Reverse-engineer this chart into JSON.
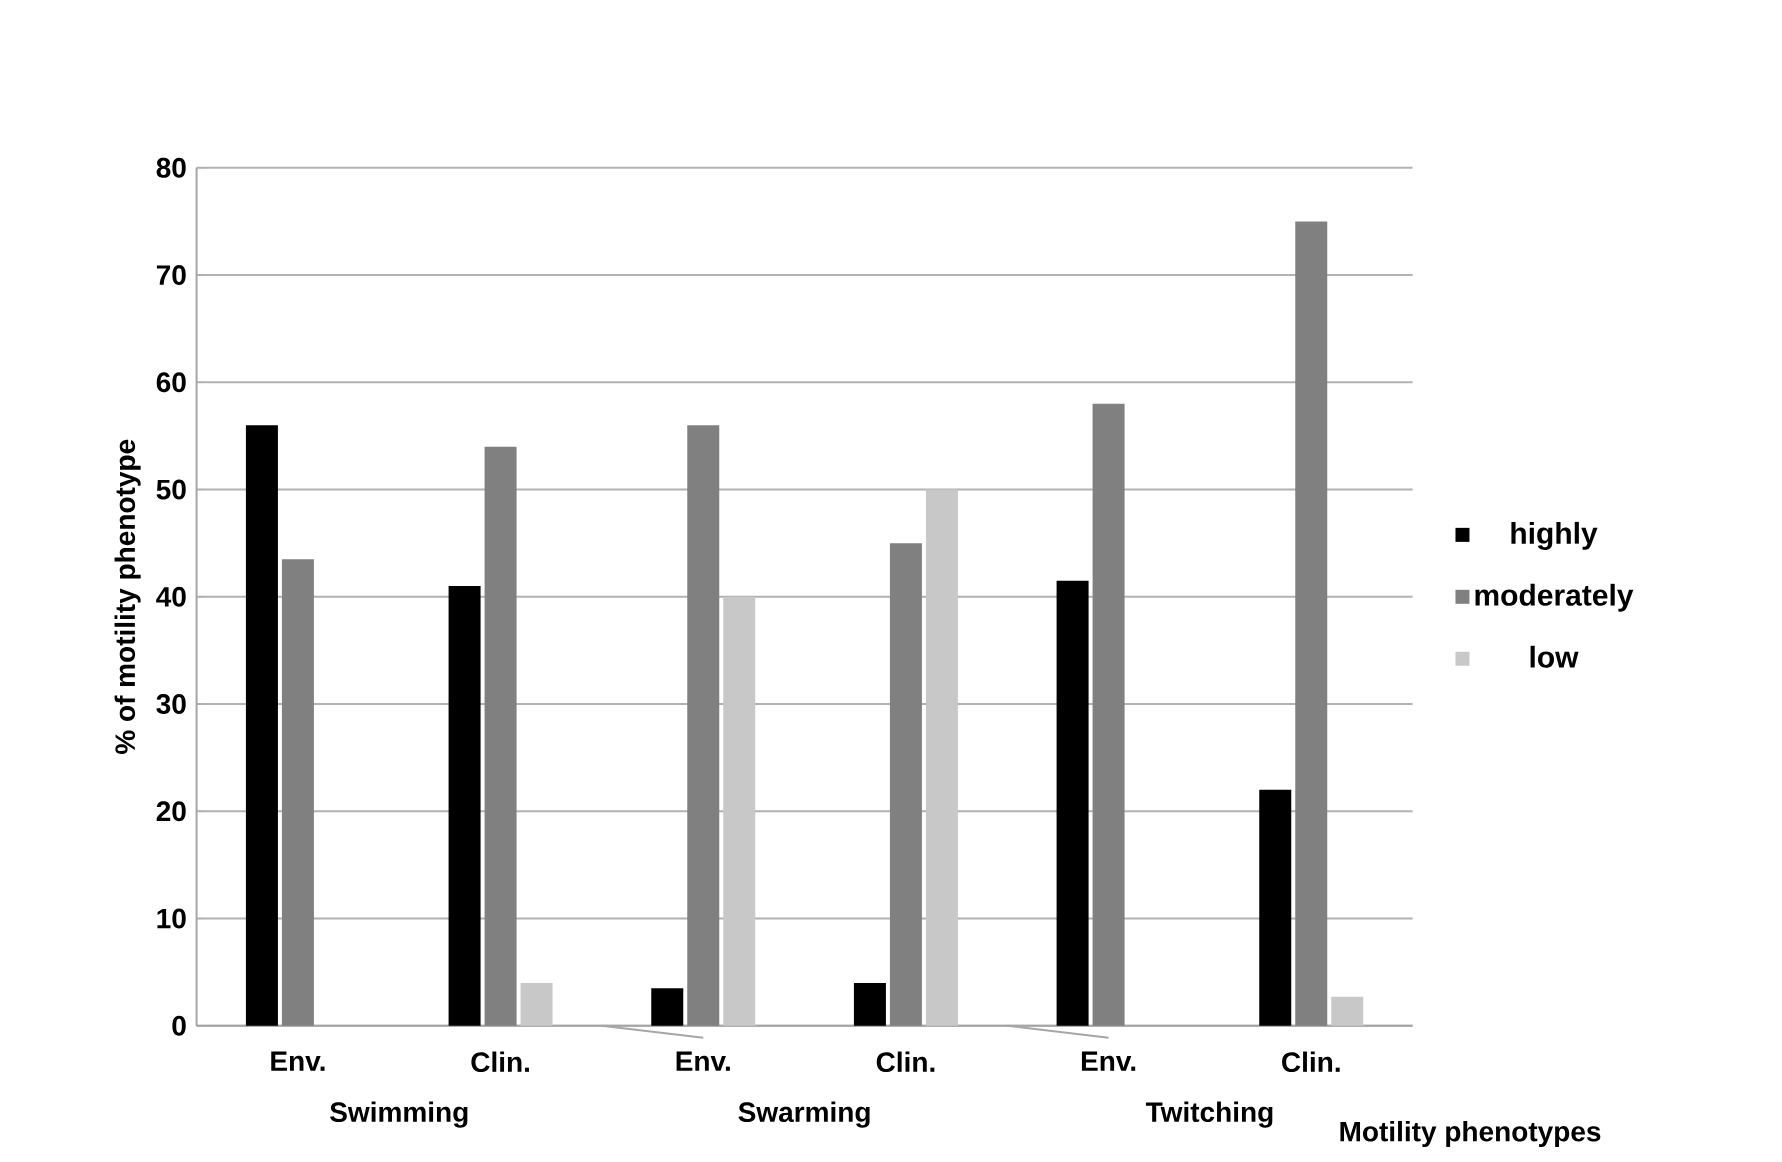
{
  "chart_data": {
    "type": "bar",
    "xlabel": "Motility phenotypes",
    "ylabel": "% of motility phenotype",
    "categories": [
      "Env.",
      "Clin.",
      "Env.",
      "Clin.",
      "Env.",
      "Clin."
    ],
    "series": [
      {
        "name": "highly",
        "color": "#000000",
        "values": [
          56,
          41,
          3.5,
          4,
          41.5,
          22
        ]
      },
      {
        "name": "moderately",
        "color": "#808080",
        "values": [
          43.5,
          54,
          56,
          45,
          58,
          75
        ]
      },
      {
        "name": "low",
        "color": "#c8c8c8",
        "values": [
          0,
          4,
          40,
          50,
          0,
          2.7
        ]
      }
    ],
    "annotations": [
      "Swimming",
      "Swarming",
      "Twitching"
    ],
    "ylim": [
      0,
      80
    ],
    "yticks": [
      0,
      10,
      20,
      30,
      40,
      50,
      60,
      70,
      80
    ],
    "grid": "y",
    "legend": "right"
  }
}
